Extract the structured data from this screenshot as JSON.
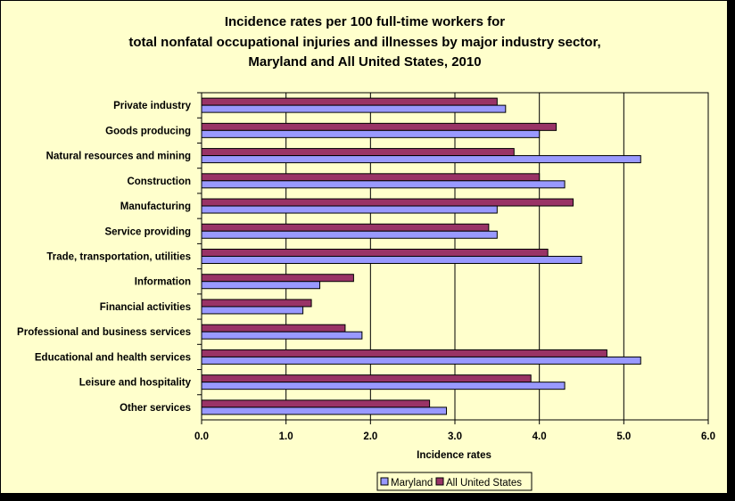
{
  "chart_data": {
    "type": "bar",
    "orientation": "horizontal",
    "title": [
      "Incidence rates per 100 full-time workers for",
      "total nonfatal occupational injuries and illnesses by major industry sector,",
      "Maryland and All United States, 2010"
    ],
    "xlabel": "Incidence rates",
    "ylabel": "",
    "xlim": [
      0,
      6
    ],
    "xticks": [
      "0.0",
      "1.0",
      "2.0",
      "3.0",
      "4.0",
      "5.0",
      "6.0"
    ],
    "grid": "vertical major gridlines",
    "legend_position": "bottom-right",
    "categories": [
      "Private industry",
      "Goods producing",
      "Natural resources and mining",
      "Construction",
      "Manufacturing",
      "Service providing",
      "Trade, transportation, utilities",
      "Information",
      "Financial activities",
      "Professional and business services",
      "Educational and health services",
      "Leisure and hospitality",
      "Other services"
    ],
    "series": [
      {
        "name": "Maryland",
        "color": "#9999ff",
        "values": [
          3.6,
          4.0,
          5.2,
          4.3,
          3.5,
          3.5,
          4.5,
          1.4,
          1.2,
          1.9,
          5.2,
          4.3,
          2.9
        ]
      },
      {
        "name": "All United States",
        "color": "#993366",
        "values": [
          3.5,
          4.2,
          3.7,
          4.0,
          4.4,
          3.4,
          4.1,
          1.8,
          1.3,
          1.7,
          4.8,
          3.9,
          2.7
        ]
      }
    ]
  }
}
